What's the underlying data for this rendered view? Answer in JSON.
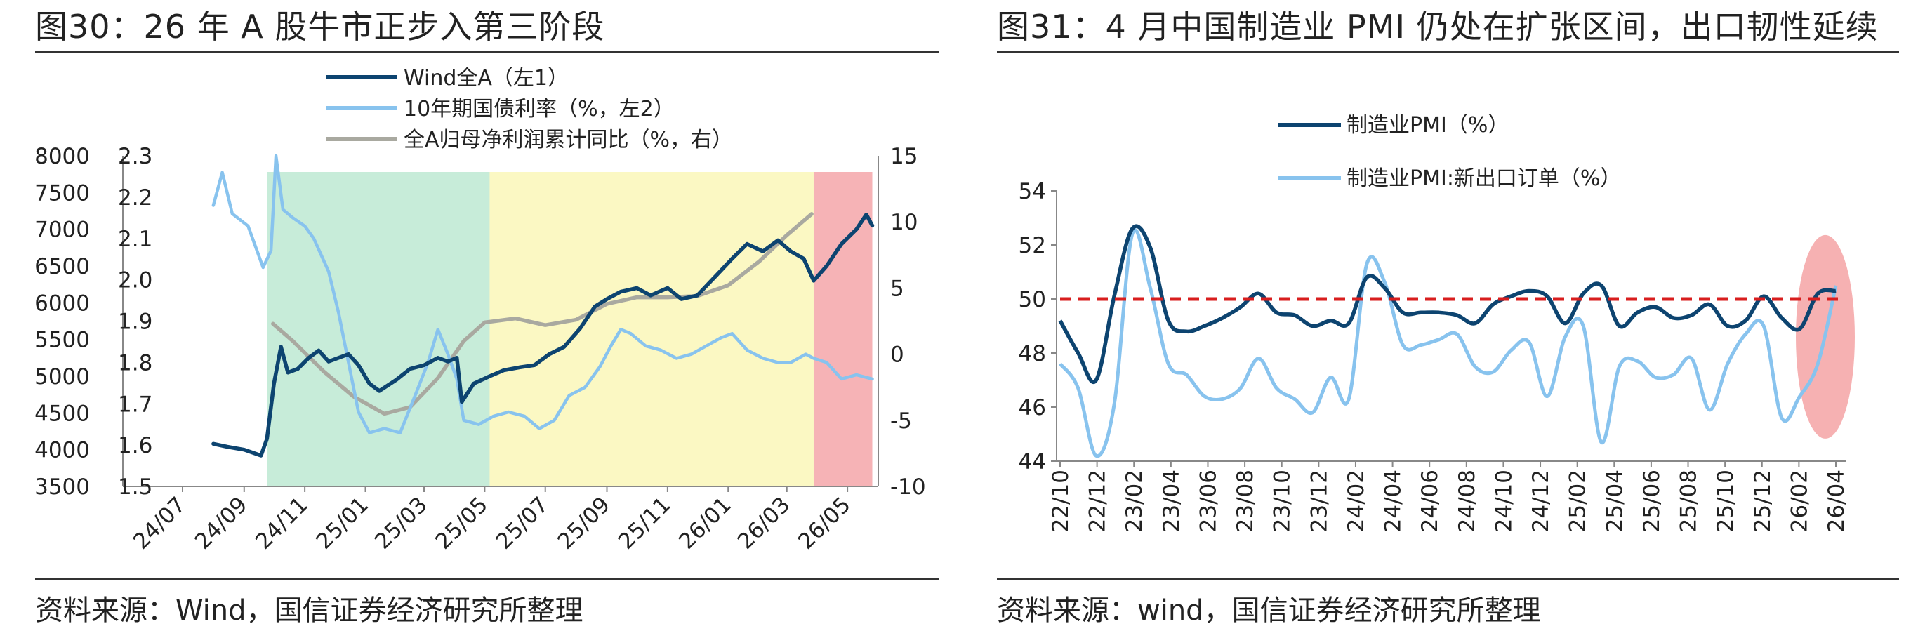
{
  "colors": {
    "dark_blue": "#0d4470",
    "light_blue": "#88c3ee",
    "gray": "#a9a9a0",
    "band_green": "#c7ecd9",
    "band_yellow": "#fbf8c3",
    "band_red": "#f6b3b6",
    "ref_red": "#d81e1e",
    "highlight_red": "#f5a8aa"
  },
  "left": {
    "title": "图30：26 年 A 股牛市正步入第三阶段",
    "source": "资料来源：Wind，国信证券经济研究所整理"
  },
  "right": {
    "title": "图31：4 月中国制造业 PMI 仍处在扩张区间，出口韧性延续",
    "source": "资料来源：wind，国信证券经济研究所整理"
  },
  "chart_data": [
    {
      "type": "line",
      "x_axis": {
        "type": "date",
        "range": [
          "2024-07",
          "2026-06"
        ],
        "tick_labels": [
          "24/07",
          "24/09",
          "24/11",
          "25/01",
          "25/03",
          "25/05",
          "25/07",
          "25/09",
          "25/11",
          "26/01",
          "26/03",
          "26/05"
        ]
      },
      "y_left1": {
        "range": [
          3500,
          8000
        ],
        "ticks": [
          "3500",
          "4000",
          "4500",
          "5000",
          "5500",
          "6000",
          "6500",
          "7000",
          "7500",
          "8000"
        ]
      },
      "y_left2": {
        "range": [
          1.5,
          2.3
        ],
        "ticks": [
          "1.5",
          "1.6",
          "1.7",
          "1.8",
          "1.9",
          "2.0",
          "2.1",
          "2.2",
          "2.3"
        ]
      },
      "y_right": {
        "range": [
          -10,
          15
        ],
        "ticks": [
          "-10",
          "-5",
          "0",
          "5",
          "10",
          "15"
        ]
      },
      "legend": {
        "placement": "top-center",
        "entries": [
          "Wind全A（左1）",
          "10年期国债利率（%，左2）",
          "全A归母净利润累计同比（%，右）"
        ]
      },
      "shaded_periods": [
        {
          "start": "2024-09-24",
          "end": "2025-05-06",
          "color": "green"
        },
        {
          "start": "2025-05-06",
          "end": "2026-03-28",
          "color": "yellow"
        },
        {
          "start": "2026-03-28",
          "end": "2026-05-26",
          "color": "red"
        }
      ],
      "series": [
        {
          "name": "Wind全A（左1）",
          "axis": "left1",
          "points": [
            [
              "2024-08-01",
              4080
            ],
            [
              "2024-08-15",
              4040
            ],
            [
              "2024-09-01",
              4000
            ],
            [
              "2024-09-18",
              3920
            ],
            [
              "2024-09-24",
              4150
            ],
            [
              "2024-10-01",
              4900
            ],
            [
              "2024-10-08",
              5400
            ],
            [
              "2024-10-15",
              5050
            ],
            [
              "2024-10-25",
              5100
            ],
            [
              "2024-11-05",
              5250
            ],
            [
              "2024-11-15",
              5350
            ],
            [
              "2024-11-25",
              5200
            ],
            [
              "2024-12-05",
              5250
            ],
            [
              "2024-12-15",
              5300
            ],
            [
              "2024-12-25",
              5150
            ],
            [
              "2025-01-05",
              4900
            ],
            [
              "2025-01-15",
              4800
            ],
            [
              "2025-02-01",
              4950
            ],
            [
              "2025-02-15",
              5100
            ],
            [
              "2025-03-01",
              5150
            ],
            [
              "2025-03-15",
              5250
            ],
            [
              "2025-03-25",
              5200
            ],
            [
              "2025-04-03",
              5250
            ],
            [
              "2025-04-08",
              4650
            ],
            [
              "2025-04-20",
              4900
            ],
            [
              "2025-05-06",
              5000
            ],
            [
              "2025-05-20",
              5080
            ],
            [
              "2025-06-05",
              5120
            ],
            [
              "2025-06-20",
              5150
            ],
            [
              "2025-07-05",
              5300
            ],
            [
              "2025-07-20",
              5400
            ],
            [
              "2025-08-05",
              5650
            ],
            [
              "2025-08-20",
              5950
            ],
            [
              "2025-09-01",
              6050
            ],
            [
              "2025-09-15",
              6150
            ],
            [
              "2025-10-01",
              6200
            ],
            [
              "2025-10-15",
              6100
            ],
            [
              "2025-11-01",
              6200
            ],
            [
              "2025-11-15",
              6050
            ],
            [
              "2025-12-01",
              6100
            ],
            [
              "2025-12-15",
              6300
            ],
            [
              "2026-01-05",
              6600
            ],
            [
              "2026-01-20",
              6800
            ],
            [
              "2026-02-05",
              6700
            ],
            [
              "2026-02-20",
              6850
            ],
            [
              "2026-03-05",
              6700
            ],
            [
              "2026-03-18",
              6600
            ],
            [
              "2026-03-28",
              6300
            ],
            [
              "2026-04-10",
              6500
            ],
            [
              "2026-04-25",
              6800
            ],
            [
              "2026-05-10",
              7000
            ],
            [
              "2026-05-20",
              7200
            ],
            [
              "2026-05-26",
              7050
            ]
          ]
        },
        {
          "name": "10年期国债利率（%，左2）",
          "axis": "left2",
          "points": [
            [
              "2024-08-01",
              2.18
            ],
            [
              "2024-08-10",
              2.26
            ],
            [
              "2024-08-20",
              2.16
            ],
            [
              "2024-09-05",
              2.13
            ],
            [
              "2024-09-20",
              2.03
            ],
            [
              "2024-09-28",
              2.07
            ],
            [
              "2024-10-03",
              2.3
            ],
            [
              "2024-10-10",
              2.17
            ],
            [
              "2024-10-20",
              2.15
            ],
            [
              "2024-11-01",
              2.13
            ],
            [
              "2024-11-10",
              2.1
            ],
            [
              "2024-11-25",
              2.02
            ],
            [
              "2024-12-05",
              1.92
            ],
            [
              "2024-12-15",
              1.8
            ],
            [
              "2024-12-25",
              1.68
            ],
            [
              "2025-01-05",
              1.63
            ],
            [
              "2025-01-20",
              1.64
            ],
            [
              "2025-02-05",
              1.63
            ],
            [
              "2025-02-20",
              1.72
            ],
            [
              "2025-03-05",
              1.8
            ],
            [
              "2025-03-15",
              1.88
            ],
            [
              "2025-03-25",
              1.82
            ],
            [
              "2025-04-03",
              1.76
            ],
            [
              "2025-04-10",
              1.66
            ],
            [
              "2025-04-25",
              1.65
            ],
            [
              "2025-05-10",
              1.67
            ],
            [
              "2025-05-25",
              1.68
            ],
            [
              "2025-06-10",
              1.67
            ],
            [
              "2025-06-25",
              1.64
            ],
            [
              "2025-07-10",
              1.66
            ],
            [
              "2025-07-25",
              1.72
            ],
            [
              "2025-08-10",
              1.74
            ],
            [
              "2025-08-25",
              1.79
            ],
            [
              "2025-09-05",
              1.84
            ],
            [
              "2025-09-15",
              1.88
            ],
            [
              "2025-09-25",
              1.87
            ],
            [
              "2025-10-10",
              1.84
            ],
            [
              "2025-10-25",
              1.83
            ],
            [
              "2025-11-10",
              1.81
            ],
            [
              "2025-11-25",
              1.82
            ],
            [
              "2025-12-10",
              1.84
            ],
            [
              "2025-12-25",
              1.86
            ],
            [
              "2026-01-05",
              1.87
            ],
            [
              "2026-01-20",
              1.83
            ],
            [
              "2026-02-05",
              1.81
            ],
            [
              "2026-02-20",
              1.8
            ],
            [
              "2026-03-05",
              1.8
            ],
            [
              "2026-03-20",
              1.82
            ],
            [
              "2026-03-28",
              1.81
            ],
            [
              "2026-04-10",
              1.8
            ],
            [
              "2026-04-25",
              1.76
            ],
            [
              "2026-05-10",
              1.77
            ],
            [
              "2026-05-26",
              1.76
            ]
          ]
        },
        {
          "name": "全A归母净利润累计同比（%，右）",
          "axis": "right",
          "points": [
            [
              "2024-09-30",
              2.3
            ],
            [
              "2024-10-20",
              1.0
            ],
            [
              "2024-11-20",
              -1.3
            ],
            [
              "2024-12-20",
              -3.2
            ],
            [
              "2025-01-20",
              -4.5
            ],
            [
              "2025-02-15",
              -4.0
            ],
            [
              "2025-03-15",
              -1.8
            ],
            [
              "2025-04-10",
              1.0
            ],
            [
              "2025-05-01",
              2.4
            ],
            [
              "2025-06-01",
              2.7
            ],
            [
              "2025-07-01",
              2.2
            ],
            [
              "2025-08-01",
              2.6
            ],
            [
              "2025-09-01",
              3.8
            ],
            [
              "2025-10-01",
              4.3
            ],
            [
              "2025-11-01",
              4.3
            ],
            [
              "2025-12-01",
              4.4
            ],
            [
              "2026-01-01",
              5.2
            ],
            [
              "2026-02-01",
              7.0
            ],
            [
              "2026-03-01",
              9.0
            ],
            [
              "2026-03-26",
              10.6
            ]
          ]
        }
      ]
    },
    {
      "type": "line",
      "x_axis": {
        "tick_labels": [
          "22/10",
          "22/12",
          "23/02",
          "23/04",
          "23/06",
          "23/08",
          "23/10",
          "23/12",
          "24/02",
          "24/04",
          "24/06",
          "24/08",
          "24/10",
          "24/12",
          "25/02",
          "25/04",
          "25/06",
          "25/08",
          "25/10",
          "25/12",
          "26/02",
          "26/04"
        ]
      },
      "y_axis": {
        "range": [
          44,
          54
        ],
        "ticks": [
          "44",
          "46",
          "48",
          "50",
          "52",
          "54"
        ]
      },
      "reference_line": {
        "y": 50,
        "style": "dashed",
        "color": "red"
      },
      "highlight": {
        "shape": "ellipse",
        "around": [
          "26/02",
          "26/04"
        ]
      },
      "legend": {
        "placement": "top-center",
        "entries": [
          "制造业PMI（%）",
          "制造业PMI:新出口订单（%）"
        ]
      },
      "series": [
        {
          "name": "制造业PMI（%）",
          "values": [
            49.2,
            48.0,
            47.0,
            50.1,
            52.6,
            51.9,
            49.2,
            48.8,
            49.0,
            49.3,
            49.7,
            50.2,
            49.5,
            49.4,
            49.0,
            49.2,
            49.1,
            50.8,
            50.4,
            49.5,
            49.5,
            49.5,
            49.4,
            49.1,
            49.8,
            50.1,
            50.3,
            50.1,
            49.1,
            50.2,
            50.5,
            49.0,
            49.5,
            49.7,
            49.3,
            49.4,
            49.8,
            49.0,
            49.2,
            50.1,
            49.3,
            48.9,
            50.2,
            50.3
          ]
        },
        {
          "name": "制造业PMI:新出口订单（%）",
          "values": [
            47.6,
            46.7,
            44.2,
            46.1,
            52.4,
            50.4,
            47.6,
            47.2,
            46.4,
            46.3,
            46.7,
            47.8,
            46.7,
            46.3,
            45.8,
            47.1,
            46.3,
            51.3,
            50.6,
            48.3,
            48.3,
            48.5,
            48.7,
            47.5,
            47.3,
            48.1,
            48.4,
            46.4,
            48.6,
            49.0,
            44.7,
            47.5,
            47.7,
            47.1,
            47.2,
            47.8,
            45.9,
            47.6,
            48.7,
            49.0,
            45.6,
            46.4,
            47.6,
            50.5
          ]
        }
      ]
    }
  ]
}
